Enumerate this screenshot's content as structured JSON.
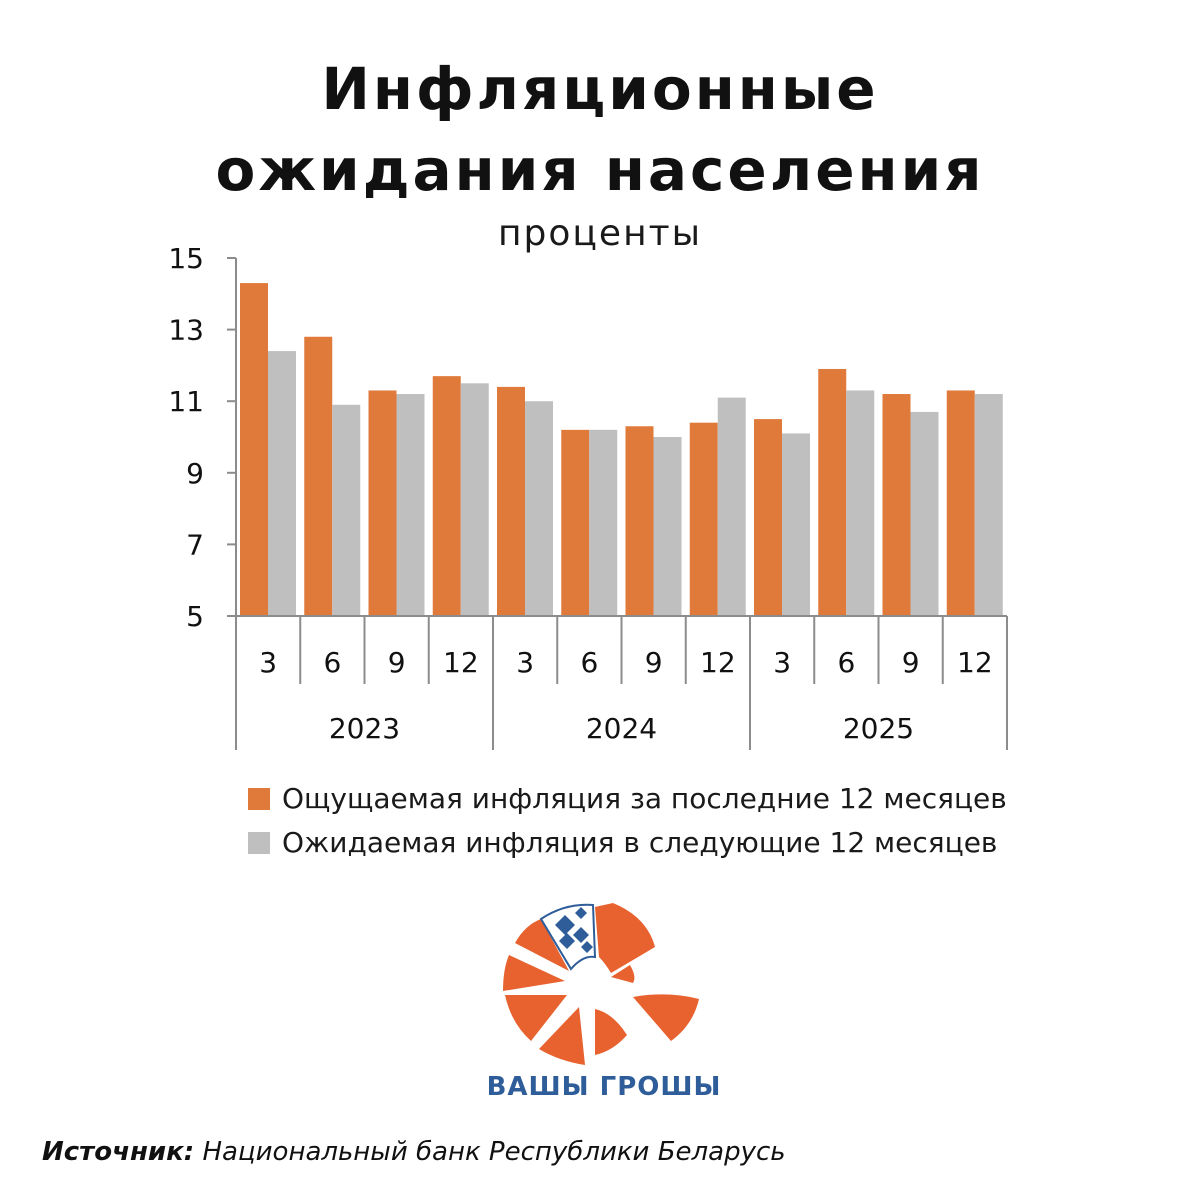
{
  "title_line1": "Инфляционные",
  "title_line2": "ожидания населения",
  "subtitle": "проценты",
  "colors": {
    "perceived": "#e07a3b",
    "expected": "#bfbfbf",
    "axis": "#8c8c8c",
    "logo_orange": "#e8622f",
    "logo_blue": "#2e5d99"
  },
  "chart_data": {
    "type": "bar",
    "categories": [
      "3",
      "6",
      "9",
      "12",
      "3",
      "6",
      "9",
      "12",
      "3",
      "6",
      "9",
      "12"
    ],
    "groups": [
      {
        "label": "2023",
        "months": [
          "3",
          "6",
          "9",
          "12"
        ]
      },
      {
        "label": "2024",
        "months": [
          "3",
          "6",
          "9",
          "12"
        ]
      },
      {
        "label": "2025",
        "months": [
          "3",
          "6",
          "9",
          "12"
        ]
      }
    ],
    "series": [
      {
        "name": "Ощущаемая инфляция за последние 12 месяцев",
        "values": [
          14.3,
          12.8,
          11.3,
          11.7,
          11.4,
          10.2,
          10.3,
          10.4,
          10.5,
          11.9,
          11.2,
          11.3
        ]
      },
      {
        "name": "Ожидаемая инфляция в следующие 12 месяцев",
        "values": [
          12.4,
          10.9,
          11.2,
          11.5,
          11.0,
          10.2,
          10.0,
          11.1,
          10.1,
          11.3,
          10.7,
          11.2
        ]
      }
    ],
    "yticks": [
      5,
      7,
      9,
      11,
      13,
      15
    ],
    "ylim": [
      5,
      15
    ],
    "legend_position": "bottom"
  },
  "logo_text": "ВАШЫ ГРОШЫ",
  "source_label": "Источник:",
  "source_text": "Национальный банк Республики Беларусь"
}
